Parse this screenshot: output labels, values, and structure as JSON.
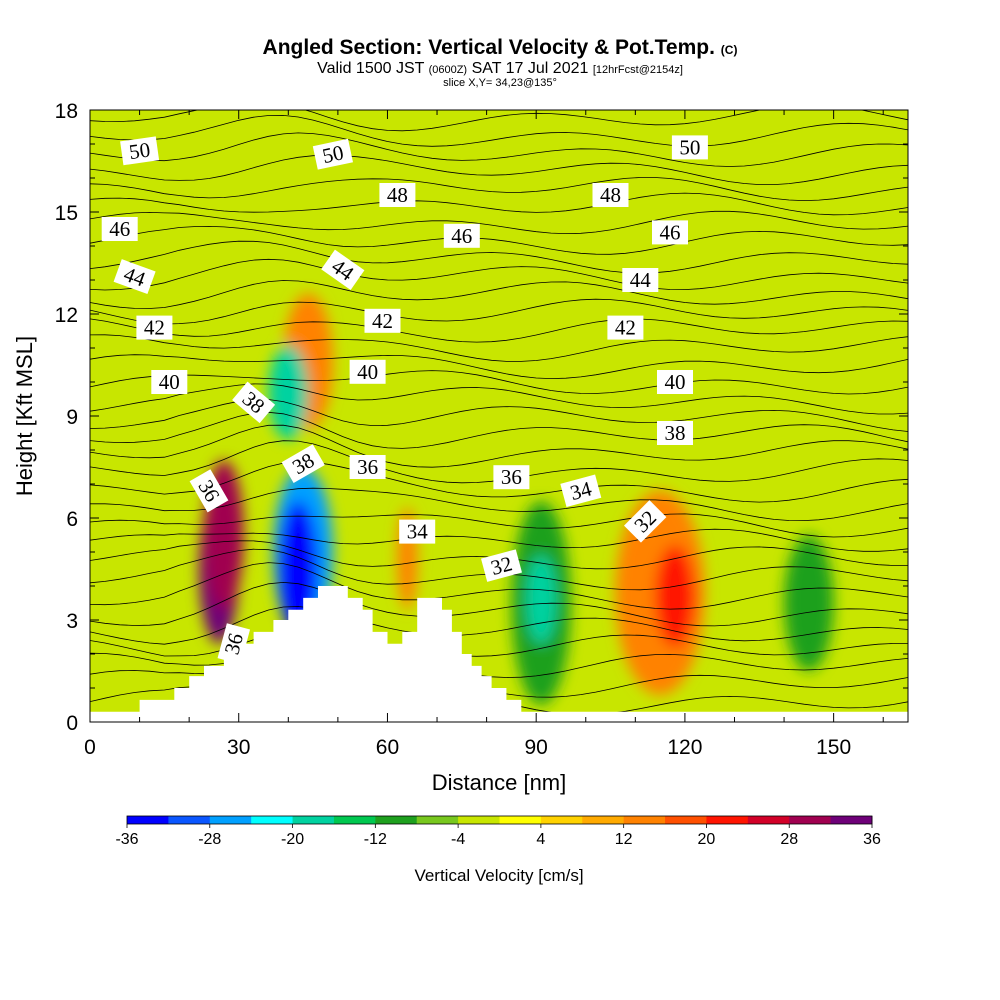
{
  "title": {
    "main": "Angled Section: Vertical Velocity & Pot.Temp.",
    "main_suffix": "(C)",
    "valid_prefix": "Valid 1500 JST",
    "valid_zulu": "(0600Z)",
    "valid_date": "SAT 17 Jul 2021",
    "forecast": "[12hrFcst@2154z]",
    "slice": "slice X,Y= 34,23@135°"
  },
  "chart_data": {
    "type": "heatmap",
    "xlabel": "Distance [nm]",
    "ylabel": "Height [Kft MSL]",
    "xlim": [
      0,
      165
    ],
    "ylim": [
      0,
      18
    ],
    "x_ticks": [
      "0",
      "30",
      "60",
      "90",
      "120",
      "150"
    ],
    "y_ticks": [
      "0",
      "3",
      "6",
      "9",
      "12",
      "15",
      "18"
    ],
    "colorbar": {
      "label": "Vertical Velocity [cm/s]",
      "tick_labels": [
        "-36",
        "-28",
        "-20",
        "-12",
        "-4",
        "4",
        "12",
        "20",
        "28",
        "36"
      ],
      "colors": [
        "#0000ff",
        "#0a56ff",
        "#00a0ff",
        "#00ffff",
        "#00d2a0",
        "#00c850",
        "#1ea01e",
        "#78c81e",
        "#c8e600",
        "#ffff00",
        "#ffd200",
        "#ffaa00",
        "#ff8200",
        "#ff5000",
        "#ff1400",
        "#d20028",
        "#a00050",
        "#6e0078"
      ]
    },
    "terrain": [
      [
        0,
        0.3
      ],
      [
        10,
        0.3
      ],
      [
        10,
        0.65
      ],
      [
        17,
        0.65
      ],
      [
        17,
        1.0
      ],
      [
        20,
        1.0
      ],
      [
        20,
        1.35
      ],
      [
        23,
        1.35
      ],
      [
        23,
        1.65
      ],
      [
        27,
        1.65
      ],
      [
        27,
        2.0
      ],
      [
        30,
        2.0
      ],
      [
        30,
        2.3
      ],
      [
        33,
        2.3
      ],
      [
        33,
        2.65
      ],
      [
        37,
        2.65
      ],
      [
        37,
        3.0
      ],
      [
        40,
        3.0
      ],
      [
        40,
        3.3
      ],
      [
        43,
        3.3
      ],
      [
        43,
        3.65
      ],
      [
        46,
        3.65
      ],
      [
        46,
        4.0
      ],
      [
        52,
        4.0
      ],
      [
        52,
        3.65
      ],
      [
        55,
        3.65
      ],
      [
        55,
        3.3
      ],
      [
        57,
        3.3
      ],
      [
        57,
        2.65
      ],
      [
        60,
        2.65
      ],
      [
        60,
        2.3
      ],
      [
        63,
        2.3
      ],
      [
        63,
        2.65
      ],
      [
        66,
        2.65
      ],
      [
        66,
        3.65
      ],
      [
        71,
        3.65
      ],
      [
        71,
        3.3
      ],
      [
        73,
        3.3
      ],
      [
        73,
        2.65
      ],
      [
        75,
        2.65
      ],
      [
        75,
        2.0
      ],
      [
        77,
        2.0
      ],
      [
        77,
        1.65
      ],
      [
        79,
        1.65
      ],
      [
        79,
        1.35
      ],
      [
        81,
        1.35
      ],
      [
        81,
        1.0
      ],
      [
        84,
        1.0
      ],
      [
        84,
        0.65
      ],
      [
        87,
        0.65
      ],
      [
        87,
        0.3
      ],
      [
        165,
        0.3
      ]
    ],
    "cells": [
      {
        "x": 26,
        "y": 4.5,
        "rx": 4,
        "ry": 2.2,
        "value": 36
      },
      {
        "x": 27,
        "y": 5.5,
        "rx": 4,
        "ry": 2.2,
        "value": 28
      },
      {
        "x": 42,
        "y": 4.5,
        "rx": 4,
        "ry": 2.0,
        "value": -36
      },
      {
        "x": 43,
        "y": 5.0,
        "rx": 6,
        "ry": 2.5,
        "value": -28
      },
      {
        "x": 91,
        "y": 3.6,
        "rx": 3,
        "ry": 1.3,
        "value": -20
      },
      {
        "x": 91,
        "y": 3.5,
        "rx": 6,
        "ry": 3.0,
        "value": -12
      },
      {
        "x": 118,
        "y": 3.7,
        "rx": 4,
        "ry": 1.5,
        "value": 20
      },
      {
        "x": 115,
        "y": 3.8,
        "rx": 9,
        "ry": 3.0,
        "value": 12
      },
      {
        "x": 44,
        "y": 10.6,
        "rx": 5,
        "ry": 2.0,
        "value": 12
      },
      {
        "x": 40,
        "y": 9.7,
        "rx": 4,
        "ry": 1.4,
        "value": -20
      },
      {
        "x": 64,
        "y": 4.8,
        "rx": 2,
        "ry": 1.5,
        "value": 12
      },
      {
        "x": 145,
        "y": 3.5,
        "rx": 5,
        "ry": 2.0,
        "value": -12
      }
    ],
    "isotherm_labels": [
      {
        "x": 10,
        "y": 16.8,
        "text": "50",
        "angle": -8
      },
      {
        "x": 49,
        "y": 16.7,
        "text": "50",
        "angle": -12
      },
      {
        "x": 121,
        "y": 16.9,
        "text": "50",
        "angle": 0
      },
      {
        "x": 62,
        "y": 15.5,
        "text": "48",
        "angle": 0
      },
      {
        "x": 105,
        "y": 15.5,
        "text": "48",
        "angle": 0
      },
      {
        "x": 6,
        "y": 14.5,
        "text": "46",
        "angle": 0
      },
      {
        "x": 75,
        "y": 14.3,
        "text": "46",
        "angle": 0
      },
      {
        "x": 117,
        "y": 14.4,
        "text": "46",
        "angle": 0
      },
      {
        "x": 9,
        "y": 13.1,
        "text": "44",
        "angle": 20
      },
      {
        "x": 51,
        "y": 13.3,
        "text": "44",
        "angle": 35
      },
      {
        "x": 111,
        "y": 13.0,
        "text": "44",
        "angle": 0
      },
      {
        "x": 13,
        "y": 11.6,
        "text": "42",
        "angle": 0
      },
      {
        "x": 59,
        "y": 11.8,
        "text": "42",
        "angle": 0
      },
      {
        "x": 108,
        "y": 11.6,
        "text": "42",
        "angle": 0
      },
      {
        "x": 16,
        "y": 10.0,
        "text": "40",
        "angle": 0
      },
      {
        "x": 56,
        "y": 10.3,
        "text": "40",
        "angle": 0
      },
      {
        "x": 118,
        "y": 10.0,
        "text": "40",
        "angle": 0
      },
      {
        "x": 33,
        "y": 9.4,
        "text": "38",
        "angle": 40
      },
      {
        "x": 43,
        "y": 7.6,
        "text": "38",
        "angle": -30
      },
      {
        "x": 118,
        "y": 8.5,
        "text": "38",
        "angle": 0
      },
      {
        "x": 24,
        "y": 6.8,
        "text": "36",
        "angle": 60
      },
      {
        "x": 56,
        "y": 7.5,
        "text": "36",
        "angle": 0
      },
      {
        "x": 85,
        "y": 7.2,
        "text": "36",
        "angle": 0
      },
      {
        "x": 29,
        "y": 2.3,
        "text": "36",
        "angle": -75
      },
      {
        "x": 66,
        "y": 5.6,
        "text": "34",
        "angle": 0
      },
      {
        "x": 99,
        "y": 6.8,
        "text": "34",
        "angle": -15
      },
      {
        "x": 83,
        "y": 4.6,
        "text": "32",
        "angle": -15
      },
      {
        "x": 112,
        "y": 5.9,
        "text": "32",
        "angle": -45
      }
    ]
  }
}
